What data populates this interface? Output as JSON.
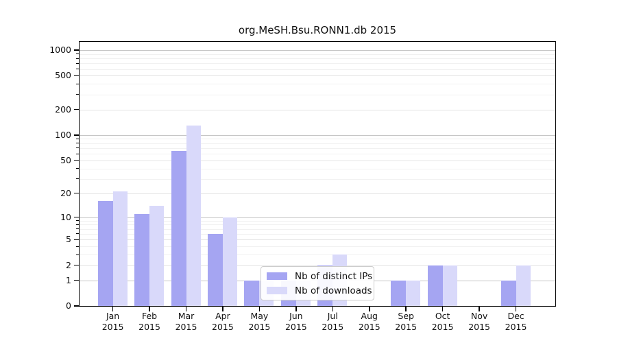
{
  "title": "org.MeSH.Bsu.RONN1.db 2015",
  "chart_data": {
    "type": "bar",
    "title": "org.MeSH.Bsu.RONN1.db 2015",
    "categories": [
      "Jan",
      "Feb",
      "Mar",
      "Apr",
      "May",
      "Jun",
      "Jul",
      "Aug",
      "Sep",
      "Oct",
      "Nov",
      "Dec"
    ],
    "year_label": "2015",
    "series": [
      {
        "name": "Nb of distinct IPs",
        "color": "#a5a5f2",
        "values": [
          16,
          11,
          65,
          6,
          1,
          1,
          2,
          0,
          1,
          2,
          0,
          1
        ]
      },
      {
        "name": "Nb of downloads",
        "color": "#d9d9fa",
        "values": [
          21,
          14,
          130,
          10,
          1,
          1,
          3,
          0,
          1,
          2,
          0,
          2
        ]
      }
    ],
    "yscale": "log1p",
    "ylim": [
      0,
      1000
    ],
    "yticks": [
      0,
      1,
      2,
      5,
      10,
      20,
      50,
      100,
      200,
      500,
      1000
    ],
    "minor_yticks": [
      3,
      4,
      6,
      7,
      8,
      9,
      30,
      40,
      60,
      70,
      80,
      90,
      300,
      400,
      600,
      700,
      800,
      900
    ],
    "grid": true,
    "legend_position": "lower-center"
  },
  "colors": {
    "major_grid": "#c6c6c6",
    "labeled_grid": "#e3e3e3",
    "minor_grid": "#f1f1f1",
    "spine": "#000000"
  }
}
